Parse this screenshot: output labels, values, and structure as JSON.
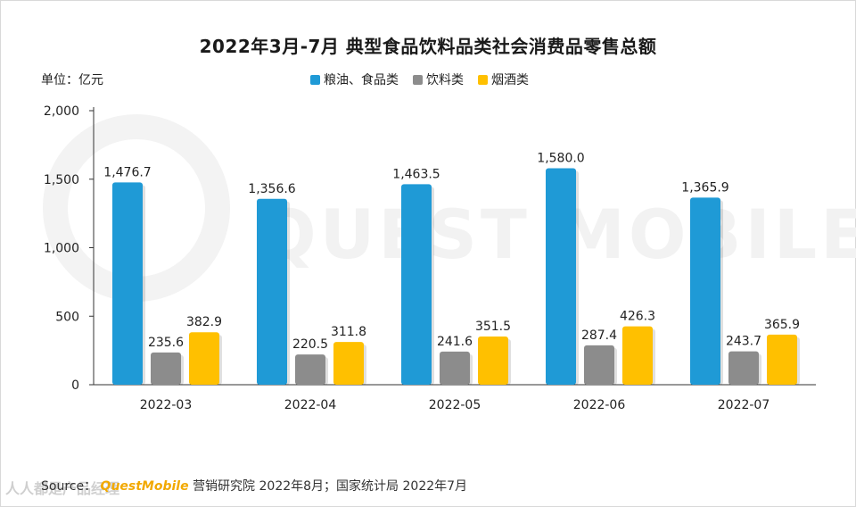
{
  "chart_data": {
    "type": "bar",
    "title": "2022年3月-7月 典型食品饮料品类社会消费品零售总额",
    "unit_label": "单位：亿元",
    "categories": [
      "2022-03",
      "2022-04",
      "2022-05",
      "2022-06",
      "2022-07"
    ],
    "series": [
      {
        "name": "粮油、食品类",
        "color": "#1f9ad6",
        "values": [
          1476.7,
          1356.6,
          1463.5,
          1580.0,
          1365.9
        ],
        "labels": [
          "1,476.7",
          "1,356.6",
          "1,463.5",
          "1,580.0",
          "1,365.9"
        ]
      },
      {
        "name": "饮料类",
        "color": "#8c8c8c",
        "values": [
          235.6,
          220.5,
          241.6,
          287.4,
          243.7
        ],
        "labels": [
          "235.6",
          "220.5",
          "241.6",
          "287.4",
          "243.7"
        ]
      },
      {
        "name": "烟酒类",
        "color": "#ffc000",
        "values": [
          382.9,
          311.8,
          351.5,
          426.3,
          365.9
        ],
        "labels": [
          "382.9",
          "311.8",
          "351.5",
          "426.3",
          "365.9"
        ]
      }
    ],
    "ylim": [
      0,
      2000
    ],
    "yticks": [
      0,
      500,
      1000,
      1500,
      2000
    ],
    "ytick_labels": [
      "0",
      "500",
      "1,000",
      "1,500",
      "2,000"
    ],
    "grid": false,
    "legend_position": "top-center"
  },
  "watermark": "QUEST MOBILE",
  "source": {
    "prefix": "Source：",
    "brand": "QuestMobile",
    "text": "营销研究院 2022年8月；国家统计局 2022年7月"
  },
  "stamp": "人人都是产品经理"
}
